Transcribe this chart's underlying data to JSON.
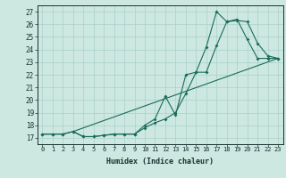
{
  "xlabel": "Humidex (Indice chaleur)",
  "xlim": [
    -0.5,
    23.5
  ],
  "ylim": [
    16.5,
    27.5
  ],
  "xticks": [
    0,
    1,
    2,
    3,
    4,
    5,
    6,
    7,
    8,
    9,
    10,
    11,
    12,
    13,
    14,
    15,
    16,
    17,
    18,
    19,
    20,
    21,
    22,
    23
  ],
  "yticks": [
    17,
    18,
    19,
    20,
    21,
    22,
    23,
    24,
    25,
    26,
    27
  ],
  "bg_color": "#cce8e0",
  "grid_color": "#aad0c8",
  "line_color": "#1a6b5a",
  "line1_x": [
    0,
    1,
    2,
    3,
    4,
    5,
    6,
    7,
    8,
    9,
    10,
    11,
    12,
    13,
    14,
    15,
    16,
    17,
    18,
    19,
    20,
    21,
    22,
    23
  ],
  "line1_y": [
    17.3,
    17.3,
    17.3,
    17.5,
    17.1,
    17.1,
    17.2,
    17.3,
    17.3,
    17.3,
    17.8,
    18.2,
    18.5,
    19.0,
    20.5,
    22.2,
    22.2,
    24.3,
    26.2,
    26.4,
    24.8,
    23.3,
    23.3,
    23.3
  ],
  "line2_x": [
    0,
    1,
    2,
    3,
    4,
    5,
    6,
    7,
    8,
    9,
    10,
    11,
    12,
    13,
    14,
    15,
    16,
    17,
    18,
    19,
    20,
    21,
    22,
    23
  ],
  "line2_y": [
    17.3,
    17.3,
    17.3,
    17.5,
    17.1,
    17.1,
    17.2,
    17.3,
    17.3,
    17.3,
    18.0,
    18.5,
    20.3,
    18.8,
    22.0,
    22.2,
    24.2,
    27.0,
    26.2,
    26.3,
    26.2,
    24.5,
    23.5,
    23.3
  ],
  "line3_x": [
    3,
    23
  ],
  "line3_y": [
    17.5,
    23.3
  ]
}
